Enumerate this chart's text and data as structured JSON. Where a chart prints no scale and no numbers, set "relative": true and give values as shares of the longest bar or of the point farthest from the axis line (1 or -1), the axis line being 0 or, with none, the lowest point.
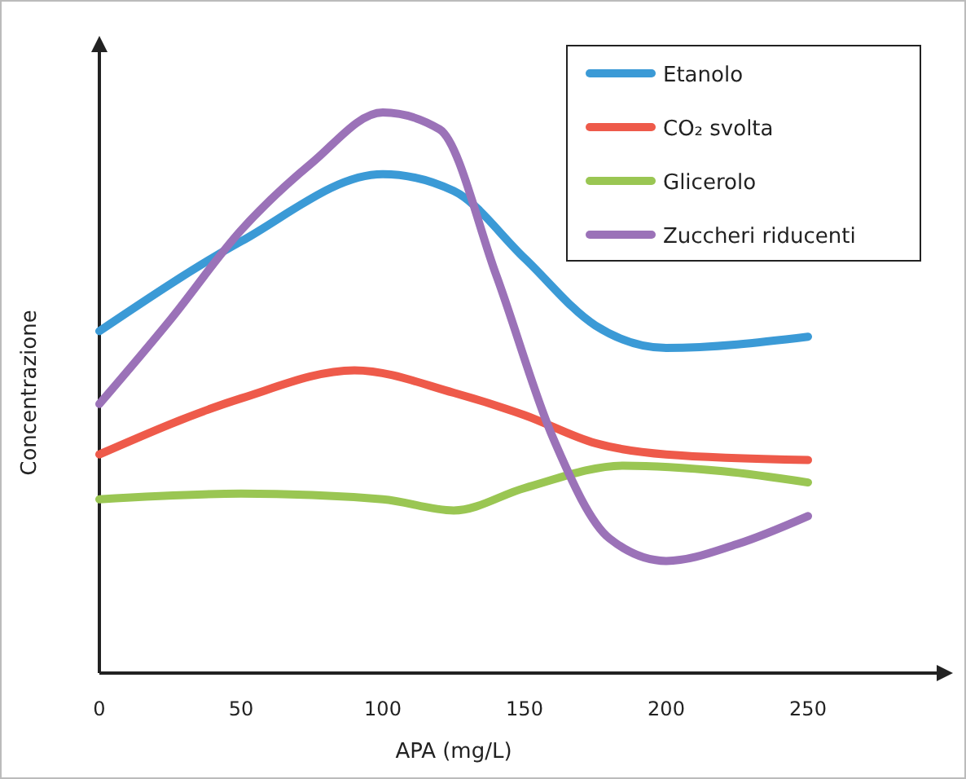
{
  "chart_data": {
    "type": "line",
    "xlabel": "APA (mg/L)",
    "ylabel": "Concentrazione",
    "relative": true,
    "xlim": [
      0,
      300
    ],
    "xticks": [
      0,
      50,
      100,
      150,
      200,
      250
    ],
    "legend": "top right",
    "grid": false,
    "series": [
      {
        "name": "Etanolo",
        "color": "#3b9ad6",
        "x": [
          0,
          50,
          100,
          125,
          150,
          175,
          200,
          250
        ],
        "values": [
          0.61,
          0.77,
          0.89,
          0.86,
          0.74,
          0.62,
          0.58,
          0.6
        ]
      },
      {
        "name": "CO₂ svolta",
        "color": "#ee5a4a",
        "x": [
          0,
          50,
          90,
          125,
          150,
          175,
          200,
          250
        ],
        "values": [
          0.39,
          0.49,
          0.54,
          0.5,
          0.46,
          0.41,
          0.39,
          0.38
        ]
      },
      {
        "name": "Glicerolo",
        "color": "#9ac653",
        "x": [
          0,
          50,
          100,
          125,
          150,
          185,
          220,
          250
        ],
        "values": [
          0.31,
          0.32,
          0.31,
          0.29,
          0.33,
          0.37,
          0.36,
          0.34
        ]
      },
      {
        "name": "Zuccheri riducenti",
        "color": "#9b72b8",
        "x": [
          0,
          25,
          50,
          75,
          100,
          120,
          140,
          160,
          180,
          200,
          225,
          250
        ],
        "values": [
          0.48,
          0.63,
          0.79,
          0.91,
          1,
          0.97,
          0.71,
          0.42,
          0.24,
          0.2,
          0.23,
          0.28
        ]
      }
    ]
  }
}
